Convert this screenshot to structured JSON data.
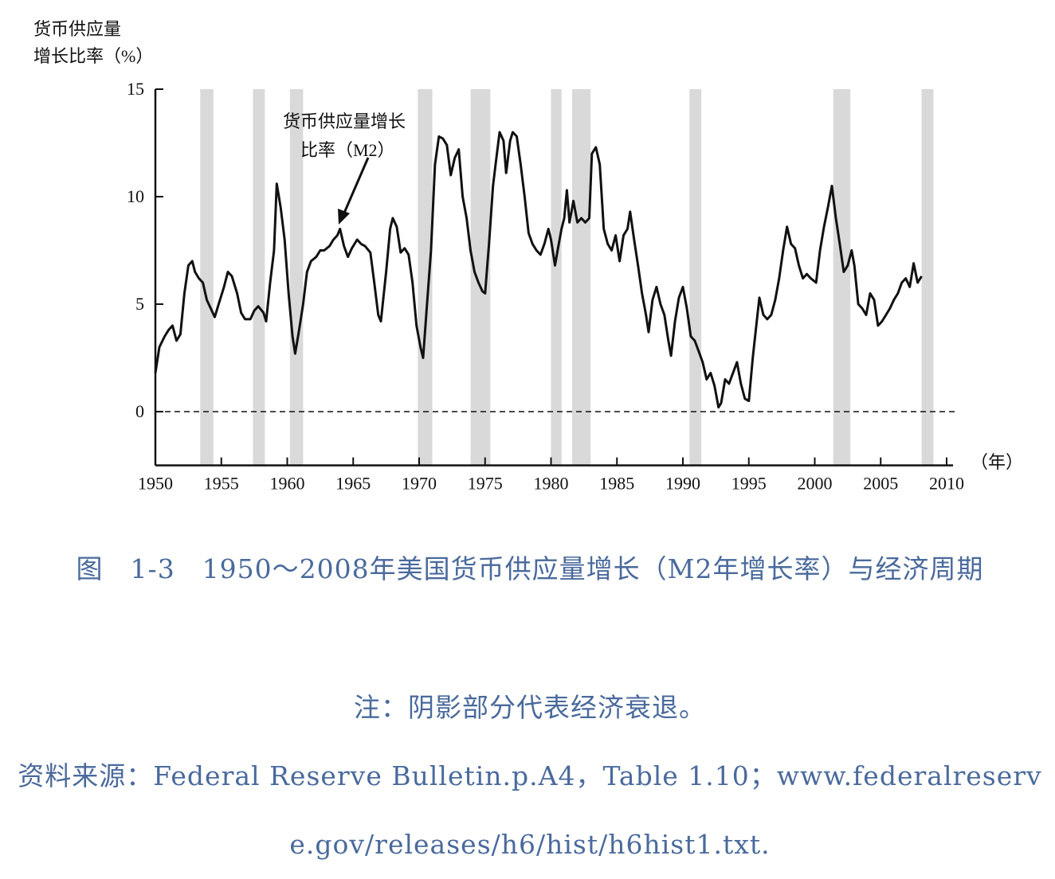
{
  "chart_data": {
    "type": "line",
    "y_label": [
      "货币供应量",
      "增长比率（%）"
    ],
    "x_label": "（年）",
    "annotation": [
      "货币供应量增长",
      "比率（M2）"
    ],
    "xlim": [
      1950,
      2010
    ],
    "xticks": [
      1950,
      1955,
      1960,
      1965,
      1970,
      1975,
      1980,
      1985,
      1990,
      1995,
      2000,
      2005,
      2010
    ],
    "ylim": [
      -2.5,
      15
    ],
    "yticks": [
      0,
      5,
      10,
      15
    ],
    "recessions": [
      [
        1953.4,
        1954.4
      ],
      [
        1957.4,
        1958.3
      ],
      [
        1960.2,
        1961.2
      ],
      [
        1969.9,
        1971.0
      ],
      [
        1973.9,
        1975.4
      ],
      [
        1980.0,
        1980.8
      ],
      [
        1981.6,
        1983.0
      ],
      [
        1990.5,
        1991.4
      ],
      [
        2001.4,
        2002.7
      ],
      [
        2008.1,
        2009.0
      ]
    ],
    "recession_color": "#d9d9d9",
    "series": [
      {
        "name": "M2",
        "color": "#111111",
        "x": [
          1950.0,
          1950.3,
          1950.7,
          1951.0,
          1951.3,
          1951.6,
          1951.9,
          1952.2,
          1952.5,
          1952.8,
          1953.0,
          1953.3,
          1953.6,
          1953.9,
          1954.2,
          1954.5,
          1954.8,
          1955.2,
          1955.5,
          1955.8,
          1956.2,
          1956.5,
          1956.8,
          1957.2,
          1957.5,
          1957.8,
          1958.2,
          1958.4,
          1958.7,
          1959.0,
          1959.2,
          1959.5,
          1959.8,
          1960.1,
          1960.4,
          1960.6,
          1960.9,
          1961.2,
          1961.5,
          1961.8,
          1962.2,
          1962.5,
          1962.8,
          1963.2,
          1963.5,
          1963.8,
          1964.0,
          1964.3,
          1964.6,
          1964.9,
          1965.3,
          1965.6,
          1965.9,
          1966.3,
          1966.6,
          1966.9,
          1967.1,
          1967.5,
          1967.8,
          1968.0,
          1968.3,
          1968.6,
          1968.9,
          1969.2,
          1969.5,
          1969.8,
          1970.1,
          1970.3,
          1970.6,
          1970.9,
          1971.2,
          1971.5,
          1971.8,
          1972.1,
          1972.4,
          1972.7,
          1973.0,
          1973.3,
          1973.6,
          1973.9,
          1974.2,
          1974.5,
          1974.8,
          1975.0,
          1975.3,
          1975.6,
          1975.9,
          1976.1,
          1976.4,
          1976.6,
          1976.9,
          1977.1,
          1977.4,
          1977.7,
          1978.0,
          1978.3,
          1978.6,
          1978.9,
          1979.2,
          1979.5,
          1979.8,
          1980.0,
          1980.3,
          1980.5,
          1980.8,
          1981.0,
          1981.2,
          1981.4,
          1981.7,
          1982.0,
          1982.3,
          1982.6,
          1982.9,
          1983.1,
          1983.4,
          1983.7,
          1984.0,
          1984.3,
          1984.6,
          1984.9,
          1985.2,
          1985.5,
          1985.8,
          1986.0,
          1986.3,
          1986.6,
          1986.9,
          1987.2,
          1987.4,
          1987.7,
          1988.0,
          1988.3,
          1988.6,
          1988.9,
          1989.1,
          1989.4,
          1989.7,
          1990.0,
          1990.3,
          1990.6,
          1990.9,
          1991.2,
          1991.5,
          1991.8,
          1992.1,
          1992.4,
          1992.7,
          1992.9,
          1993.2,
          1993.5,
          1993.8,
          1994.1,
          1994.4,
          1994.7,
          1995.0,
          1995.3,
          1995.6,
          1995.8,
          1996.1,
          1996.4,
          1996.7,
          1997.0,
          1997.3,
          1997.6,
          1997.9,
          1998.2,
          1998.5,
          1998.8,
          1999.1,
          1999.4,
          1999.7,
          2000.1,
          2000.4,
          2000.7,
          2001.0,
          2001.3,
          2001.6,
          2001.9,
          2002.2,
          2002.5,
          2002.8,
          2003.0,
          2003.3,
          2003.6,
          2003.9,
          2004.2,
          2004.5,
          2004.8,
          2005.1,
          2005.4,
          2005.7,
          2006.0,
          2006.3,
          2006.6,
          2006.9,
          2007.2,
          2007.5,
          2007.8,
          2008.1
        ],
        "values": [
          1.8,
          3.0,
          3.5,
          3.8,
          4.0,
          3.3,
          3.6,
          5.5,
          6.8,
          7.0,
          6.5,
          6.2,
          6.0,
          5.2,
          4.8,
          4.4,
          5.0,
          5.8,
          6.5,
          6.3,
          5.5,
          4.6,
          4.3,
          4.3,
          4.7,
          4.9,
          4.6,
          4.2,
          6.0,
          7.5,
          10.6,
          9.5,
          8.0,
          5.5,
          3.5,
          2.7,
          3.8,
          5.0,
          6.5,
          7.0,
          7.2,
          7.5,
          7.5,
          7.7,
          8.0,
          8.2,
          8.5,
          7.7,
          7.2,
          7.6,
          8.0,
          7.8,
          7.7,
          7.4,
          6.0,
          4.5,
          4.2,
          6.5,
          8.5,
          9.0,
          8.6,
          7.4,
          7.6,
          7.3,
          6.0,
          4.0,
          3.0,
          2.5,
          5.0,
          7.5,
          11.5,
          12.8,
          12.7,
          12.4,
          11.0,
          11.8,
          12.2,
          10.0,
          9.0,
          7.5,
          6.5,
          6.0,
          5.6,
          5.5,
          7.8,
          10.5,
          12.0,
          13.0,
          12.6,
          11.1,
          12.6,
          13.0,
          12.8,
          11.5,
          10.0,
          8.3,
          7.8,
          7.5,
          7.3,
          7.8,
          8.5,
          8.0,
          6.8,
          7.5,
          8.5,
          9.0,
          10.3,
          8.8,
          9.8,
          8.8,
          9.0,
          8.8,
          9.0,
          12.0,
          12.3,
          11.5,
          8.5,
          7.8,
          7.5,
          8.2,
          7.0,
          8.2,
          8.5,
          9.3,
          8.0,
          6.8,
          5.5,
          4.5,
          3.7,
          5.2,
          5.8,
          5.0,
          4.5,
          3.3,
          2.6,
          4.2,
          5.3,
          5.8,
          4.8,
          3.5,
          3.3,
          2.8,
          2.3,
          1.5,
          1.8,
          1.2,
          0.2,
          0.4,
          1.5,
          1.3,
          1.8,
          2.3,
          1.3,
          0.6,
          0.5,
          2.5,
          4.2,
          5.3,
          4.5,
          4.3,
          4.5,
          5.2,
          6.2,
          7.5,
          8.6,
          7.8,
          7.6,
          6.8,
          6.2,
          6.4,
          6.2,
          6.0,
          7.5,
          8.6,
          9.5,
          10.5,
          9.0,
          7.8,
          6.5,
          6.8,
          7.5,
          6.8,
          5.0,
          4.8,
          4.5,
          5.5,
          5.2,
          4.0,
          4.2,
          4.5,
          4.8,
          5.2,
          5.5,
          6.0,
          6.2,
          5.8,
          6.9,
          6.0,
          6.3
        ]
      }
    ]
  },
  "caption": {
    "title": "图　1-3　1950～2008年美国货币供应量增长（M2年增长率）与经济周期",
    "note": "注：阴影部分代表经济衰退。",
    "source": "资料来源：Federal Reserve Bulletin.p.A4，Table 1.10；www.federalreserve.gov/releases/h6/hist/h6hist1.txt."
  }
}
